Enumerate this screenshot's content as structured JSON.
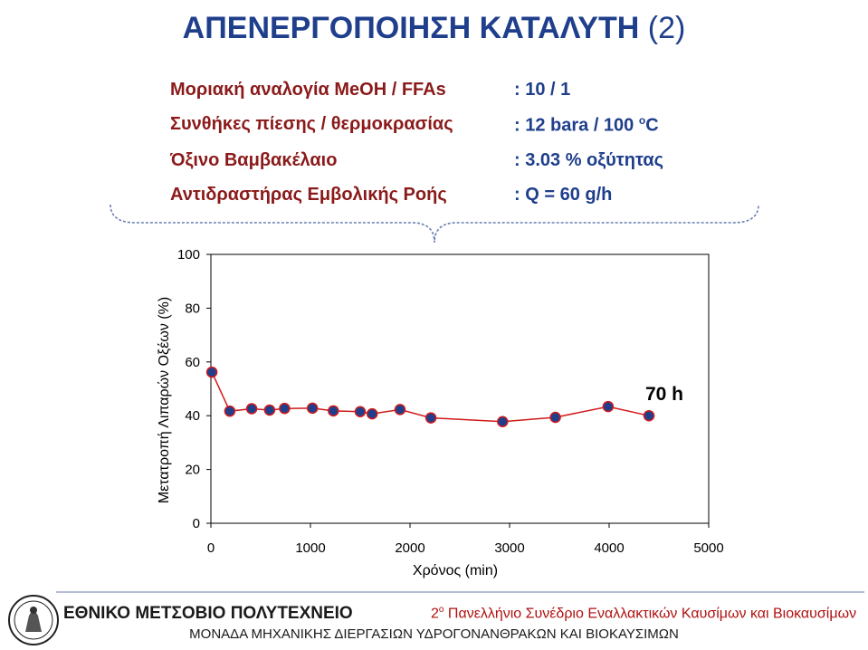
{
  "title": {
    "main": "ΑΠΕΝΕΡΓΟΠΟΙΗΣΗ ΚΑΤΑΛΥΤΗ",
    "suffix": "(2)"
  },
  "conditions": [
    {
      "label": "Μοριακή αναλογία MeOH / FFAs",
      "value": ": 10 / 1"
    },
    {
      "label": "Συνθήκες πίεσης / θερμοκρασίας",
      "value_prefix": ": 12 bara / 100 ",
      "value_sup": "o",
      "value_suffix": "C"
    },
    {
      "label": "Όξινο Βαμβακέλαιο",
      "value": ": 3.03 % οξύτητας"
    },
    {
      "label": "Αντιδραστήρας Εμβολικής Ροής",
      "value": ": Q = 60 g/h"
    }
  ],
  "chart_data": {
    "type": "line",
    "xlabel": "Χρόνος (min)",
    "ylabel": "Μετατροπή Λιπαρών Οξέων (%)",
    "xlim": [
      0,
      5000
    ],
    "ylim": [
      0,
      100
    ],
    "xticks": [
      "0",
      "1000",
      "2000",
      "3000",
      "4000",
      "5000"
    ],
    "yticks": [
      "0",
      "20",
      "40",
      "60",
      "80",
      "100"
    ],
    "grid": false,
    "annotation": "70 h",
    "series": [
      {
        "x": [
          10,
          190,
          410,
          590,
          740,
          1020,
          1230,
          1500,
          1620,
          1900,
          2210,
          2930,
          3460,
          3990,
          4400
        ],
        "y": [
          56.2,
          41.7,
          42.6,
          42.1,
          42.7,
          42.8,
          41.8,
          41.5,
          40.7,
          42.3,
          39.2,
          37.8,
          39.4,
          43.4,
          40.0
        ]
      }
    ],
    "colors": {
      "line": "#d11a1a",
      "marker_fill": "#1f3f8c",
      "marker_edge": "#d11a1a"
    }
  },
  "footer": {
    "university": "ΕΘΝΙΚΟ ΜΕΤΣΟΒΙΟ ΠΟΛΥΤΕΧΝΕΙΟ",
    "conference_num": "2",
    "conference_sup": "ο",
    "conference_text": " Πανελλήνιο Συνέδριο Εναλλακτικών Καυσίμων και Βιοκαυσίμων",
    "unit": "ΜΟΝΑΔΑ ΜΗΧΑΝΙΚΗΣ ΔΙΕΡΓΑΣΙΩΝ ΥΔΡΟΓΟΝΑΝΘΡΑΚΩΝ ΚΑΙ ΒΙΟΚΑΥΣΙΜΩΝ"
  }
}
